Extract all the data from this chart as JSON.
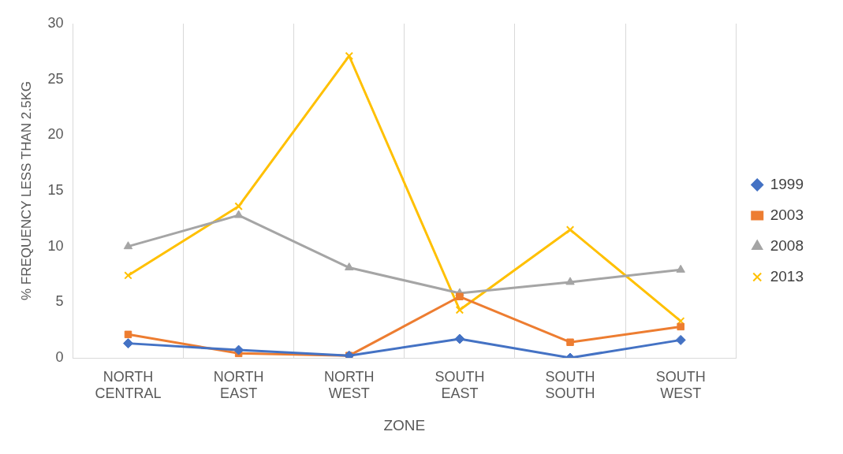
{
  "chart_data": {
    "type": "line",
    "xlabel": "ZONE",
    "ylabel": "% FREQUENCY LESS THAN 2.5KG",
    "categories": [
      "NORTH CENTRAL",
      "NORTH EAST",
      "NORTH WEST",
      "SOUTH EAST",
      "SOUTH SOUTH",
      "SOUTH WEST"
    ],
    "series": [
      {
        "name": "1999",
        "color": "#4472c4",
        "marker": "diamond",
        "values": [
          1.3,
          0.7,
          0.2,
          1.7,
          0,
          1.6
        ]
      },
      {
        "name": "2003",
        "color": "#ed7d31",
        "marker": "square",
        "values": [
          2.1,
          0.4,
          0.2,
          5.5,
          1.4,
          2.8
        ]
      },
      {
        "name": "2008",
        "color": "#a5a5a5",
        "marker": "triangle",
        "values": [
          10,
          12.8,
          8.1,
          5.8,
          6.8,
          7.9
        ]
      },
      {
        "name": "2013",
        "color": "#ffc000",
        "marker": "cross",
        "values": [
          7.4,
          13.6,
          27.1,
          4.3,
          11.5,
          3.3
        ]
      }
    ],
    "ylim": [
      0,
      30
    ],
    "yticks": [
      0,
      5,
      10,
      15,
      20,
      25,
      30
    ],
    "grid": "x",
    "legend": "right",
    "line_style": "solid"
  }
}
